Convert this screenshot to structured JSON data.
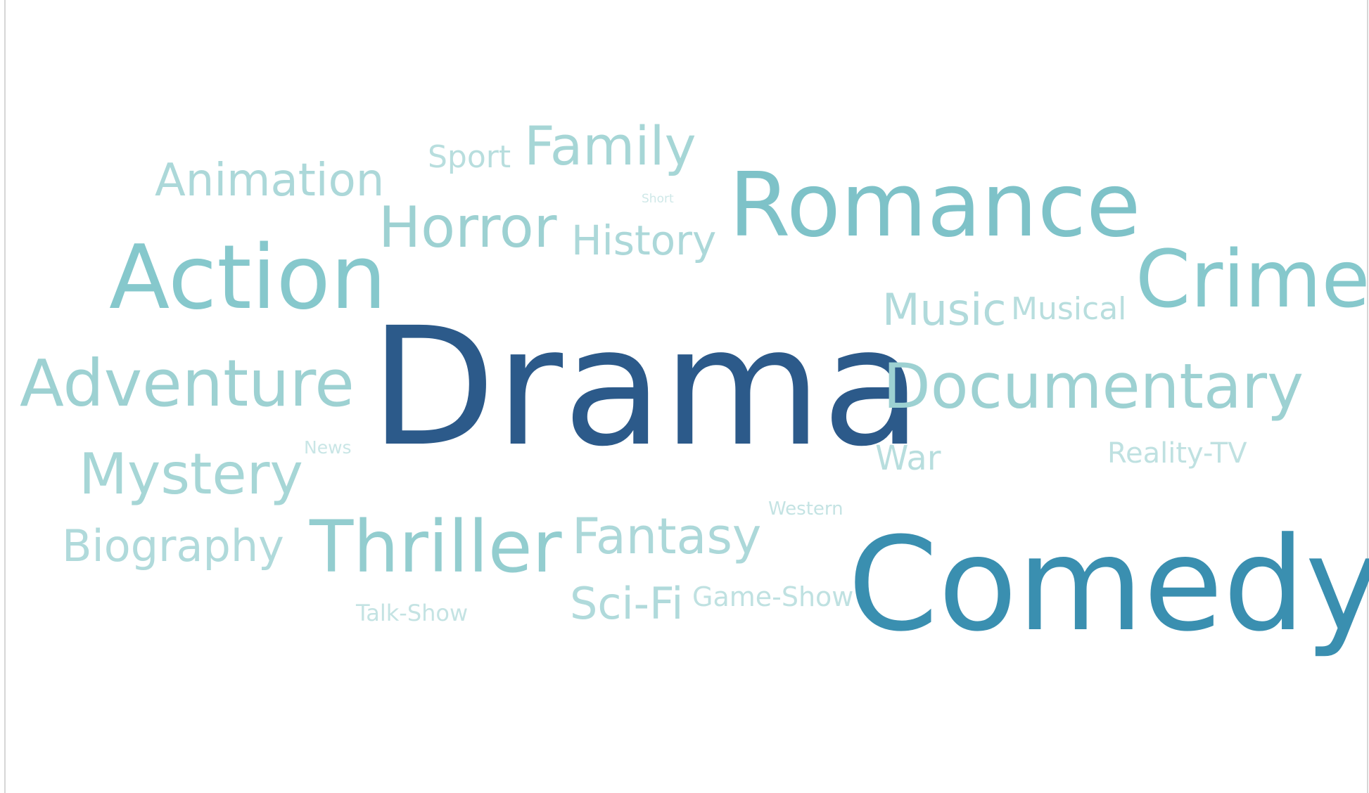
{
  "word_cloud": {
    "words": [
      {
        "text": "Drama",
        "color": "#2c5a8a"
      },
      {
        "text": "Comedy",
        "color": "#3a8fb0"
      },
      {
        "text": "Romance",
        "color": "#7ec2c8"
      },
      {
        "text": "Action",
        "color": "#86c8cc"
      },
      {
        "text": "Crime",
        "color": "#86c8cc"
      },
      {
        "text": "Documentary",
        "color": "#9dd1d2"
      },
      {
        "text": "Adventure",
        "color": "#9dd1d2"
      },
      {
        "text": "Thriller",
        "color": "#93cdcf"
      },
      {
        "text": "Horror",
        "color": "#9dd1d2"
      },
      {
        "text": "Mystery",
        "color": "#a6d6d6"
      },
      {
        "text": "Family",
        "color": "#a6d6d6"
      },
      {
        "text": "Animation",
        "color": "#acd8d9"
      },
      {
        "text": "History",
        "color": "#acd8d9"
      },
      {
        "text": "Fantasy",
        "color": "#acd8d9"
      },
      {
        "text": "Biography",
        "color": "#b0dadb"
      },
      {
        "text": "Music",
        "color": "#b0dadb"
      },
      {
        "text": "Sci-Fi",
        "color": "#b0dadb"
      },
      {
        "text": "Sport",
        "color": "#b8dede"
      },
      {
        "text": "Musical",
        "color": "#b8dede"
      },
      {
        "text": "War",
        "color": "#b8dede"
      },
      {
        "text": "Reality-TV",
        "color": "#bfe1e1"
      },
      {
        "text": "Game-Show",
        "color": "#bfe1e1"
      },
      {
        "text": "Talk-Show",
        "color": "#c4e3e3"
      },
      {
        "text": "Western",
        "color": "#c4e3e3"
      },
      {
        "text": "News",
        "color": "#c9e6e6"
      },
      {
        "text": "Short",
        "color": "#cfe8e8"
      }
    ]
  }
}
